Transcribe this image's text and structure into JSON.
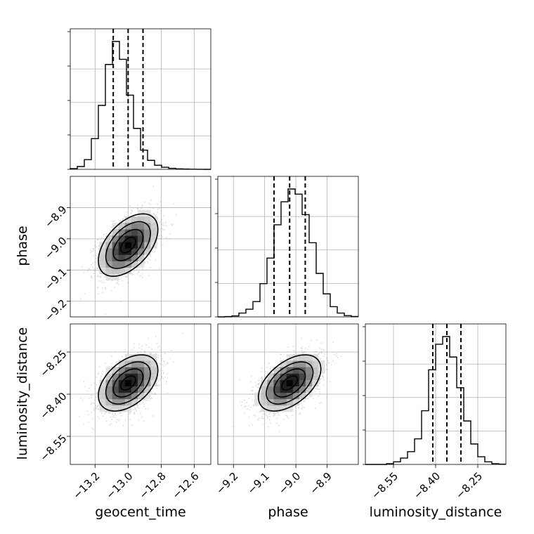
{
  "chart_data": {
    "type": "corner",
    "parameters": [
      {
        "name": "geocent_time",
        "label": "geocent_time",
        "range": [
          -13.35,
          -12.5
        ],
        "ticks": [
          -13.2,
          -13.0,
          -12.8,
          -12.6
        ],
        "tick_labels": [
          "−13.2",
          "−13.0",
          "−12.8",
          "−12.6"
        ],
        "mean": -13.0,
        "sigma": 0.09,
        "quantiles": [
          -13.09,
          -13.0,
          -12.91
        ]
      },
      {
        "name": "phase",
        "label": "phase",
        "range": [
          -9.25,
          -8.8
        ],
        "ticks": [
          -9.2,
          -9.1,
          -9.0,
          -8.9
        ],
        "tick_labels": [
          "−9.2",
          "−9.1",
          "−9.0",
          "−8.9"
        ],
        "mean": -9.02,
        "sigma": 0.05,
        "quantiles": [
          -9.07,
          -9.02,
          -8.97
        ]
      },
      {
        "name": "luminosity_distance",
        "label": "luminosity_distance",
        "range": [
          -8.65,
          -8.15
        ],
        "ticks": [
          -8.55,
          -8.4,
          -8.25
        ],
        "tick_labels": [
          "−8.55",
          "−8.40",
          "−8.25"
        ],
        "mean": -8.36,
        "sigma": 0.05,
        "quantiles": [
          -8.41,
          -8.36,
          -8.31
        ]
      }
    ],
    "histograms": [
      {
        "param": "geocent_time",
        "bins": 20,
        "values": [
          0.006,
          0.022,
          0.076,
          0.24,
          0.5,
          0.82,
          1.0,
          0.86,
          0.58,
          0.32,
          0.15,
          0.07,
          0.032,
          0.016,
          0.008,
          0.004,
          0.002,
          0.001,
          0.0005,
          0.0
        ]
      },
      {
        "param": "phase",
        "bins": 20,
        "values": [
          0.0,
          0.002,
          0.008,
          0.03,
          0.06,
          0.12,
          0.26,
          0.46,
          0.72,
          0.9,
          1.0,
          0.96,
          0.8,
          0.58,
          0.34,
          0.18,
          0.08,
          0.03,
          0.01,
          0.003
        ]
      },
      {
        "param": "luminosity_distance",
        "bins": 20,
        "values": [
          0.0,
          0.0,
          0.0,
          0.006,
          0.02,
          0.05,
          0.1,
          0.2,
          0.42,
          0.74,
          0.94,
          1.0,
          0.84,
          0.6,
          0.34,
          0.16,
          0.06,
          0.02,
          0.006,
          0.002
        ]
      }
    ],
    "pairs": [
      {
        "x": "geocent_time",
        "y": "phase",
        "correlation": 0.5
      },
      {
        "x": "geocent_time",
        "y": "luminosity_distance",
        "correlation": 0.45
      },
      {
        "x": "phase",
        "y": "luminosity_distance",
        "correlation": 0.5
      }
    ],
    "contour_levels_sigma": [
      0.5,
      1.0,
      1.5,
      2.0
    ],
    "grid": true
  }
}
